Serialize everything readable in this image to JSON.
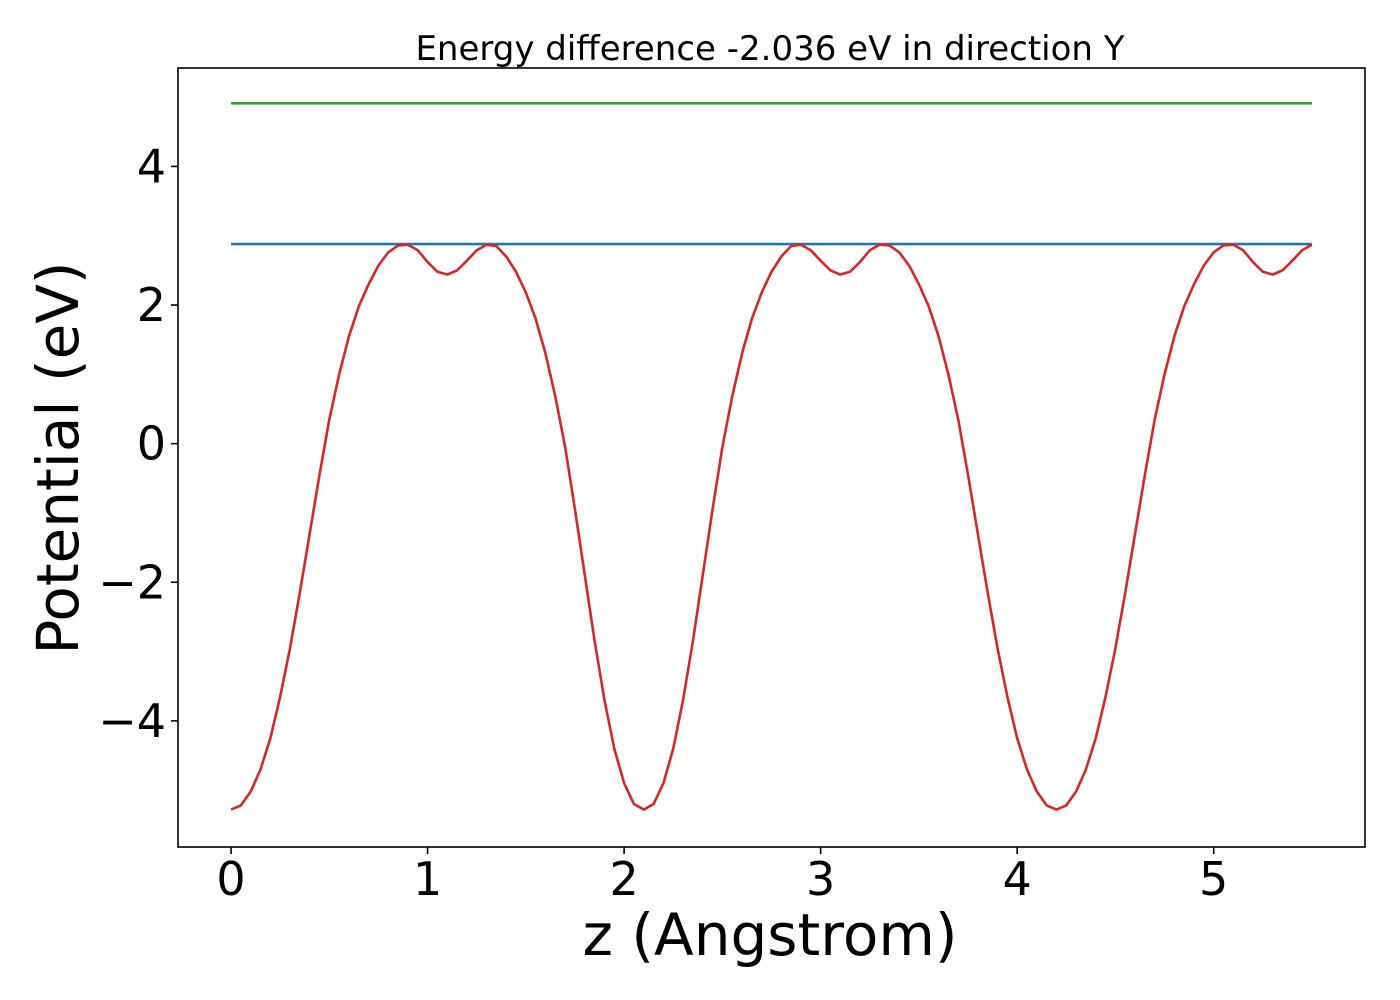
{
  "chart_data": {
    "type": "line",
    "title": "Energy difference -2.036 eV in direction Y",
    "xlabel": "z (Angstrom)",
    "ylabel": "Potential (eV)",
    "xlim": [
      -0.27,
      5.77
    ],
    "ylim": [
      -5.82,
      5.42
    ],
    "x_ticks": [
      0,
      1,
      2,
      3,
      4,
      5
    ],
    "x_tick_labels": [
      "0",
      "1",
      "2",
      "3",
      "4",
      "5"
    ],
    "y_ticks": [
      -4,
      -2,
      0,
      2,
      4
    ],
    "y_tick_labels": [
      "−4",
      "−2",
      "0",
      "2",
      "4"
    ],
    "grid": false,
    "series": [
      {
        "color": "#2ca02c",
        "x": [
          0,
          5.5
        ],
        "y": [
          4.91,
          4.91
        ]
      },
      {
        "color": "#1f77b4",
        "x": [
          0,
          5.5
        ],
        "y": [
          2.88,
          2.88
        ]
      },
      {
        "color": "#d62728",
        "x": [
          0,
          0.05,
          0.1,
          0.15,
          0.2,
          0.25,
          0.3,
          0.35,
          0.4,
          0.45,
          0.5,
          0.55,
          0.6,
          0.65,
          0.7,
          0.75,
          0.8,
          0.85,
          0.9,
          0.95,
          1.0,
          1.05,
          1.1,
          1.15,
          1.2,
          1.25,
          1.3,
          1.35,
          1.4,
          1.45,
          1.5,
          1.55,
          1.6,
          1.65,
          1.7,
          1.75,
          1.8,
          1.85,
          1.9,
          1.95,
          2.0,
          2.05,
          2.1,
          2.15,
          2.2,
          2.25,
          2.3,
          2.35,
          2.4,
          2.45,
          2.5,
          2.55,
          2.6,
          2.65,
          2.7,
          2.75,
          2.8,
          2.85,
          2.9,
          2.95,
          3.0,
          3.05,
          3.1,
          3.15,
          3.2,
          3.25,
          3.3,
          3.35,
          3.4,
          3.45,
          3.5,
          3.55,
          3.6,
          3.65,
          3.7,
          3.75,
          3.8,
          3.85,
          3.9,
          3.95,
          4.0,
          4.05,
          4.1,
          4.15,
          4.2,
          4.25,
          4.3,
          4.35,
          4.4,
          4.45,
          4.5,
          4.55,
          4.6,
          4.65,
          4.7,
          4.75,
          4.8,
          4.85,
          4.9,
          4.95,
          5.0,
          5.05,
          5.1,
          5.15,
          5.2,
          5.25,
          5.3,
          5.35,
          5.4,
          5.45,
          5.5
        ],
        "y": [
          -5.28,
          -5.22,
          -5.02,
          -4.7,
          -4.25,
          -3.65,
          -2.95,
          -2.15,
          -1.3,
          -0.45,
          0.35,
          1.0,
          1.55,
          1.98,
          2.3,
          2.57,
          2.76,
          2.86,
          2.87,
          2.79,
          2.62,
          2.48,
          2.44,
          2.5,
          2.64,
          2.79,
          2.87,
          2.85,
          2.7,
          2.48,
          2.18,
          1.8,
          1.3,
          0.68,
          -0.05,
          -0.95,
          -1.9,
          -2.85,
          -3.7,
          -4.4,
          -4.9,
          -5.2,
          -5.28,
          -5.2,
          -4.9,
          -4.4,
          -3.7,
          -2.85,
          -1.9,
          -0.95,
          -0.05,
          0.68,
          1.3,
          1.8,
          2.18,
          2.48,
          2.7,
          2.85,
          2.87,
          2.79,
          2.64,
          2.5,
          2.44,
          2.48,
          2.62,
          2.79,
          2.87,
          2.86,
          2.76,
          2.57,
          2.3,
          1.98,
          1.55,
          1.0,
          0.35,
          -0.45,
          -1.3,
          -2.15,
          -2.95,
          -3.65,
          -4.25,
          -4.7,
          -5.02,
          -5.22,
          -5.28,
          -5.22,
          -5.02,
          -4.7,
          -4.25,
          -3.65,
          -2.95,
          -2.15,
          -1.3,
          -0.45,
          0.35,
          1.0,
          1.55,
          1.98,
          2.3,
          2.57,
          2.76,
          2.86,
          2.87,
          2.79,
          2.62,
          2.48,
          2.44,
          2.5,
          2.64,
          2.79,
          2.87
        ],
        "x_is_sample_grid": true
      }
    ]
  }
}
